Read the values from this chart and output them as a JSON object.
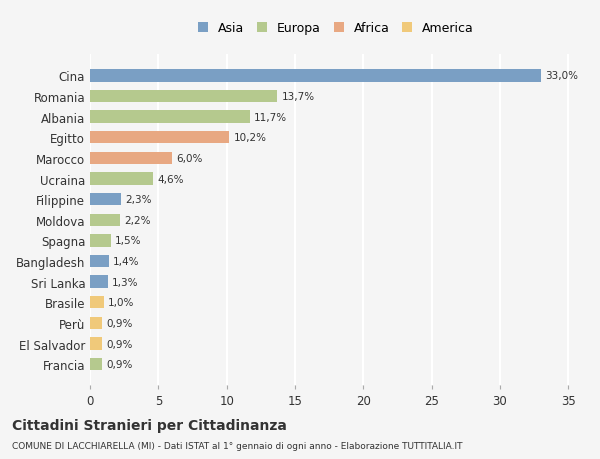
{
  "categories": [
    "Francia",
    "El Salvador",
    "Perù",
    "Brasile",
    "Sri Lanka",
    "Bangladesh",
    "Spagna",
    "Moldova",
    "Filippine",
    "Ucraina",
    "Marocco",
    "Egitto",
    "Albania",
    "Romania",
    "Cina"
  ],
  "values": [
    0.9,
    0.9,
    0.9,
    1.0,
    1.3,
    1.4,
    1.5,
    2.2,
    2.3,
    4.6,
    6.0,
    10.2,
    11.7,
    13.7,
    33.0
  ],
  "labels": [
    "0,9%",
    "0,9%",
    "0,9%",
    "1,0%",
    "1,3%",
    "1,4%",
    "1,5%",
    "2,2%",
    "2,3%",
    "4,6%",
    "6,0%",
    "10,2%",
    "11,7%",
    "13,7%",
    "33,0%"
  ],
  "colors": [
    "#b5c98e",
    "#f0c97a",
    "#f0c97a",
    "#f0c97a",
    "#7a9fc4",
    "#7a9fc4",
    "#b5c98e",
    "#b5c98e",
    "#7a9fc4",
    "#b5c98e",
    "#e8a882",
    "#e8a882",
    "#b5c98e",
    "#b5c98e",
    "#7a9fc4"
  ],
  "legend_labels": [
    "Asia",
    "Europa",
    "Africa",
    "America"
  ],
  "legend_colors": [
    "#7a9fc4",
    "#b5c98e",
    "#e8a882",
    "#f0c97a"
  ],
  "title": "Cittadini Stranieri per Cittadinanza",
  "subtitle": "COMUNE DI LACCHIARELLA (MI) - Dati ISTAT al 1° gennaio di ogni anno - Elaborazione TUTTITALIA.IT",
  "xlim": [
    0,
    36
  ],
  "xticks": [
    0,
    5,
    10,
    15,
    20,
    25,
    30,
    35
  ],
  "background_color": "#f5f5f5",
  "bar_height": 0.6,
  "grid_color": "#ffffff",
  "text_color": "#333333"
}
